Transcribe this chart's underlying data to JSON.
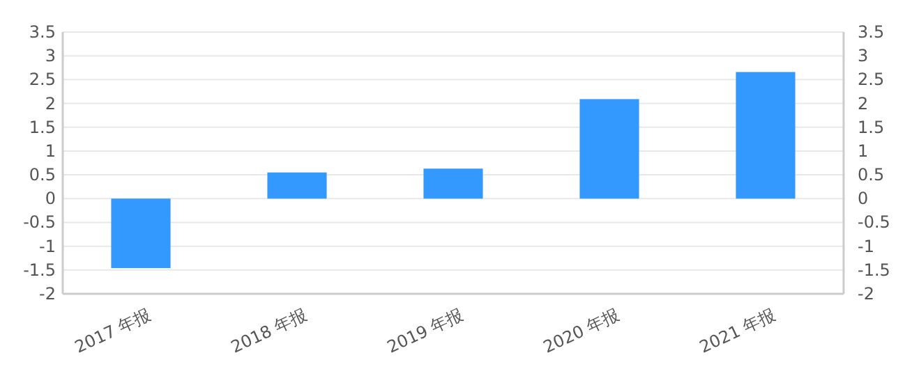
{
  "chart_data": {
    "type": "bar",
    "categories": [
      "2017 年报",
      "2018 年报",
      "2019 年报",
      "2020 年报",
      "2021 年报"
    ],
    "values": [
      -1.46,
      0.55,
      0.63,
      2.09,
      2.66
    ],
    "color": "#3399ff",
    "ylim": [
      -2,
      3.5
    ],
    "yticks": [
      -2,
      -1.5,
      -1,
      -0.5,
      0,
      0.5,
      1,
      1.5,
      2,
      2.5,
      3,
      3.5
    ],
    "y2lim": [
      -2,
      3.5
    ],
    "y2ticks": [
      -2,
      -1.5,
      -1,
      -0.5,
      0,
      0.5,
      1,
      1.5,
      2,
      2.5,
      3,
      3.5
    ],
    "grid": "y"
  }
}
